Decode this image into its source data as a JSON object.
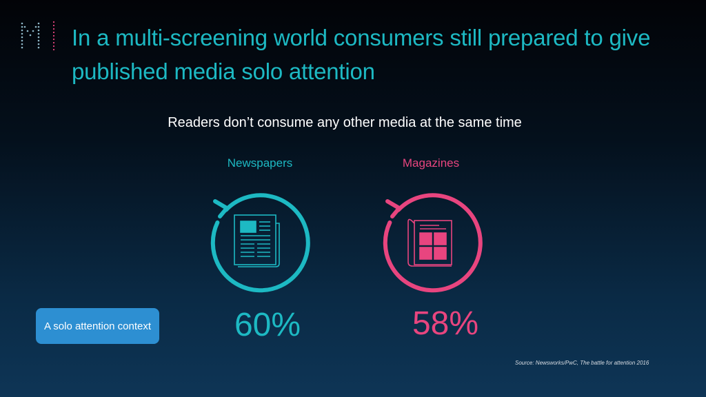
{
  "header": {
    "logo_letter": "M",
    "title": "In a multi-screening world consumers still prepared to give published media solo attention"
  },
  "subtitle": "Readers don’t consume any other media at the same time",
  "stats": [
    {
      "label": "Newspapers",
      "value": "60%",
      "color": "#1db9c3",
      "icon": "newspaper-icon"
    },
    {
      "label": "Magazines",
      "value": "58%",
      "color": "#e8457f",
      "icon": "magazine-icon"
    }
  ],
  "context_button": {
    "label": "A solo attention context"
  },
  "source": "Source:  Newsworks/PwC, The battle for attention 2016"
}
